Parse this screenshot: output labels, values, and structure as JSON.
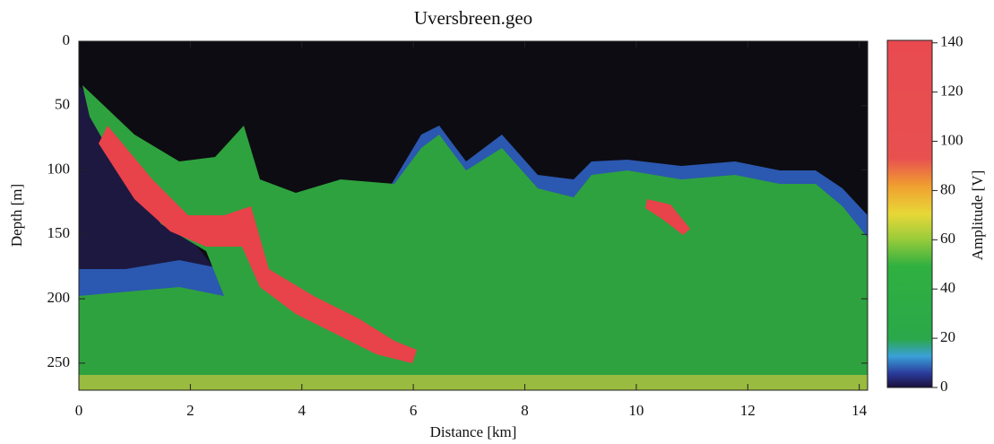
{
  "chart_data": {
    "type": "heatmap",
    "title": "Uversbreen.geo",
    "xlabel": "Distance [km]",
    "ylabel": "Depth [m]",
    "colorbar_label": "Amplitude [V]",
    "xlim": [
      0,
      14.15
    ],
    "xticks": [
      0,
      2,
      4,
      6,
      8,
      10,
      12,
      14
    ],
    "ylim": [
      0,
      271
    ],
    "yticks": [
      0,
      50,
      100,
      150,
      200,
      250
    ],
    "y_inverted": true,
    "clim": [
      0,
      141
    ],
    "cticks": [
      0,
      20,
      40,
      60,
      80,
      100,
      120,
      140
    ]
  }
}
